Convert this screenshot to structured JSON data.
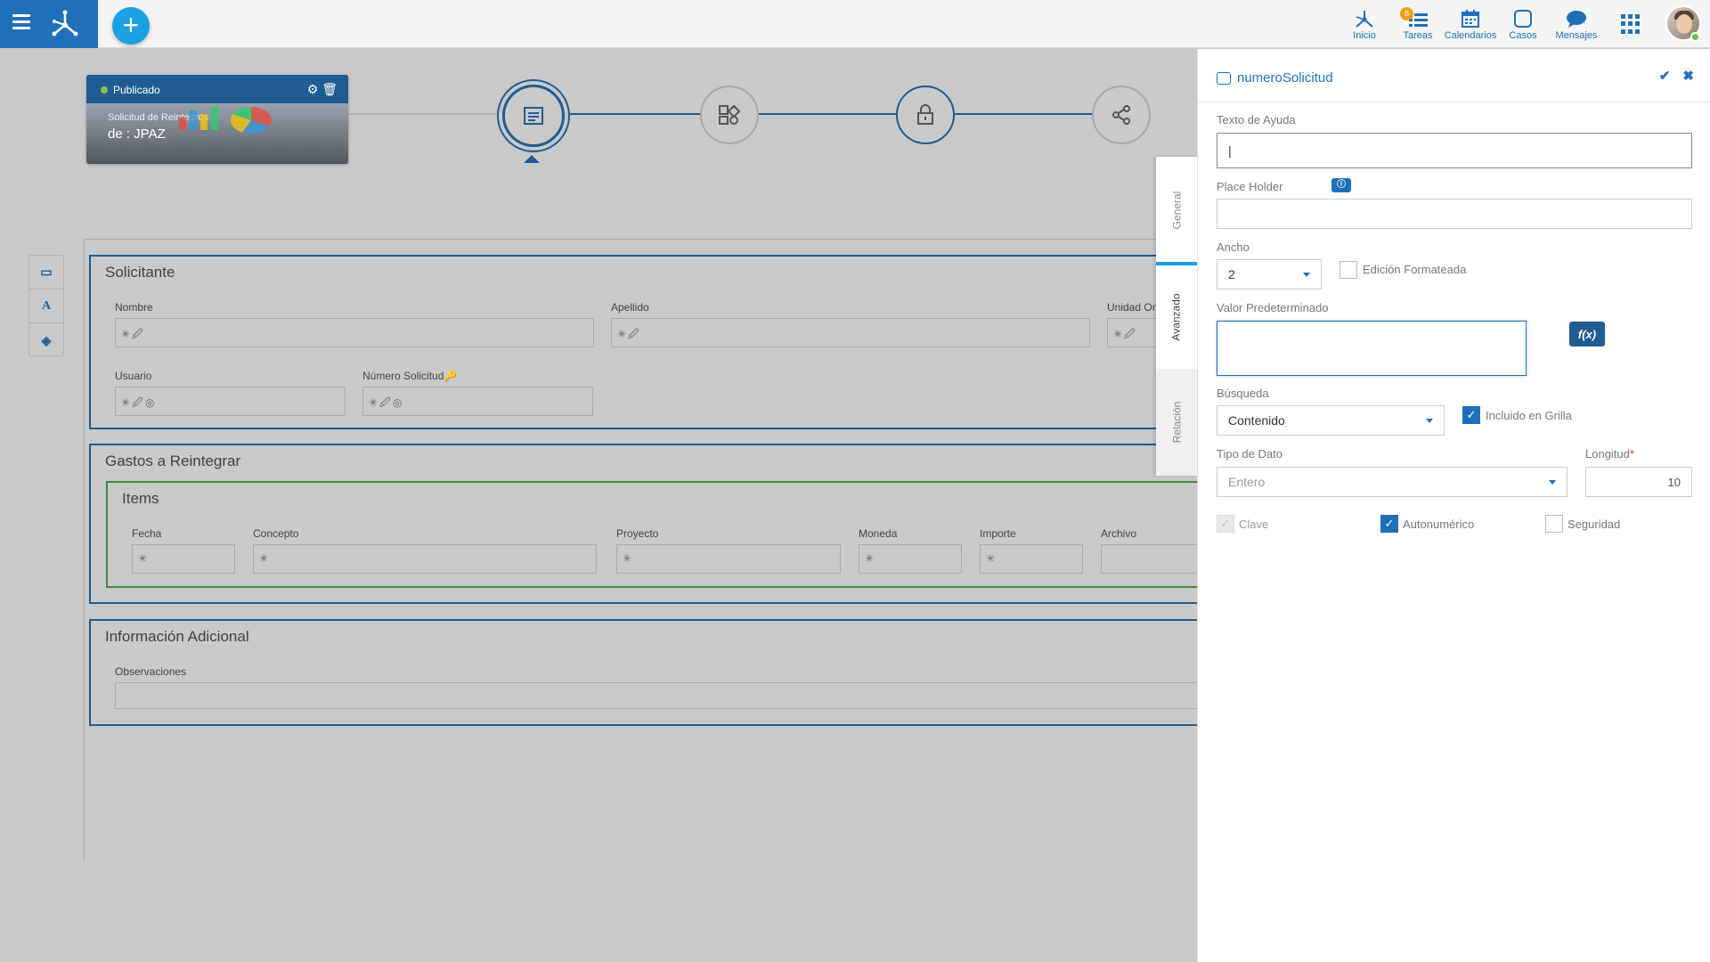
{
  "nav": {
    "items": [
      {
        "label": "Inicio",
        "icon": "home-network-icon"
      },
      {
        "label": "Tareas",
        "icon": "tasks-icon",
        "badge": "8"
      },
      {
        "label": "Calendarios",
        "icon": "calendar-icon"
      },
      {
        "label": "Casos",
        "icon": "cases-icon"
      },
      {
        "label": "Mensajes",
        "icon": "chat-icon"
      }
    ]
  },
  "process_card": {
    "status": "Publicado",
    "title": "Solicitud de Reintegros",
    "subtitle": "de : JPAZ"
  },
  "form": {
    "solicitante": {
      "title": "Solicitante",
      "nombre": "Nombre",
      "apellido": "Apellido",
      "unidad": "Unidad Or",
      "usuario": "Usuario",
      "numero": "Número Solicitud"
    },
    "gastos": {
      "title": "Gastos a Reintegrar",
      "items_title": "Items",
      "columns": [
        "Fecha",
        "Concepto",
        "Proyecto",
        "Moneda",
        "Importe",
        "Archivo"
      ]
    },
    "info": {
      "title": "Información Adicional",
      "observaciones": "Observaciones"
    }
  },
  "tabs": {
    "general": "General",
    "avanzado": "Avanzado",
    "relacion": "Relación"
  },
  "panel": {
    "title": "numeroSolicitud",
    "texto_ayuda": {
      "label": "Texto de Ayuda",
      "value": "|"
    },
    "place_holder": {
      "label": "Place Holder",
      "value": ""
    },
    "ancho": {
      "label": "Ancho",
      "value": "2"
    },
    "edicion_formateada": "Edición Formateada",
    "valor_predeterminado": {
      "label": "Valor Predeterminado",
      "value": ""
    },
    "fx_label": "f(x)",
    "busqueda": {
      "label": "Búsqueda",
      "value": "Contenido"
    },
    "incluido_grilla": "Incluido en Grilla",
    "tipo_dato": {
      "label": "Tipo de Dato",
      "value": "Entero"
    },
    "longitud": {
      "label": "Longitud",
      "value": "10"
    },
    "clave": "Clave",
    "autonumerico": "Autonumérico",
    "seguridad": "Seguridad"
  }
}
